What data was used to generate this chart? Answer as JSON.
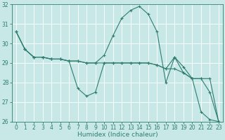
{
  "xlabel": "Humidex (Indice chaleur)",
  "bg_color": "#c8e8e8",
  "grid_color": "#ffffff",
  "line_color": "#2e7d6e",
  "x_values": [
    0,
    1,
    2,
    3,
    4,
    5,
    6,
    7,
    8,
    9,
    10,
    11,
    12,
    13,
    14,
    15,
    16,
    17,
    18,
    19,
    20,
    21,
    22,
    23
  ],
  "line1": [
    30.6,
    29.7,
    29.3,
    29.3,
    29.2,
    29.2,
    29.1,
    29.1,
    29.0,
    29.0,
    29.0,
    29.0,
    29.0,
    29.0,
    29.0,
    29.0,
    28.9,
    28.7,
    29.3,
    28.8,
    28.2,
    28.2,
    28.2,
    26.0
  ],
  "line2": [
    30.6,
    29.7,
    29.3,
    29.3,
    29.2,
    29.2,
    29.1,
    29.1,
    29.0,
    29.0,
    29.4,
    30.4,
    31.3,
    31.7,
    31.9,
    31.5,
    30.6,
    28.0,
    29.3,
    28.5,
    28.2,
    26.5,
    26.1,
    26.0
  ],
  "line3": [
    30.6,
    29.7,
    29.3,
    29.3,
    29.2,
    29.2,
    29.1,
    27.7,
    27.3,
    27.5,
    29.0,
    29.0,
    29.0,
    29.0,
    29.0,
    29.0,
    28.9,
    28.7,
    28.7,
    28.5,
    28.2,
    28.2,
    27.5,
    26.0
  ],
  "ylim": [
    26,
    32
  ],
  "yticks": [
    26,
    27,
    28,
    29,
    30,
    31,
    32
  ],
  "xticks": [
    0,
    1,
    2,
    3,
    4,
    5,
    6,
    7,
    8,
    9,
    10,
    11,
    12,
    13,
    14,
    15,
    16,
    17,
    18,
    19,
    20,
    21,
    22,
    23
  ],
  "tick_fontsize": 5.5,
  "xlabel_fontsize": 6.5
}
